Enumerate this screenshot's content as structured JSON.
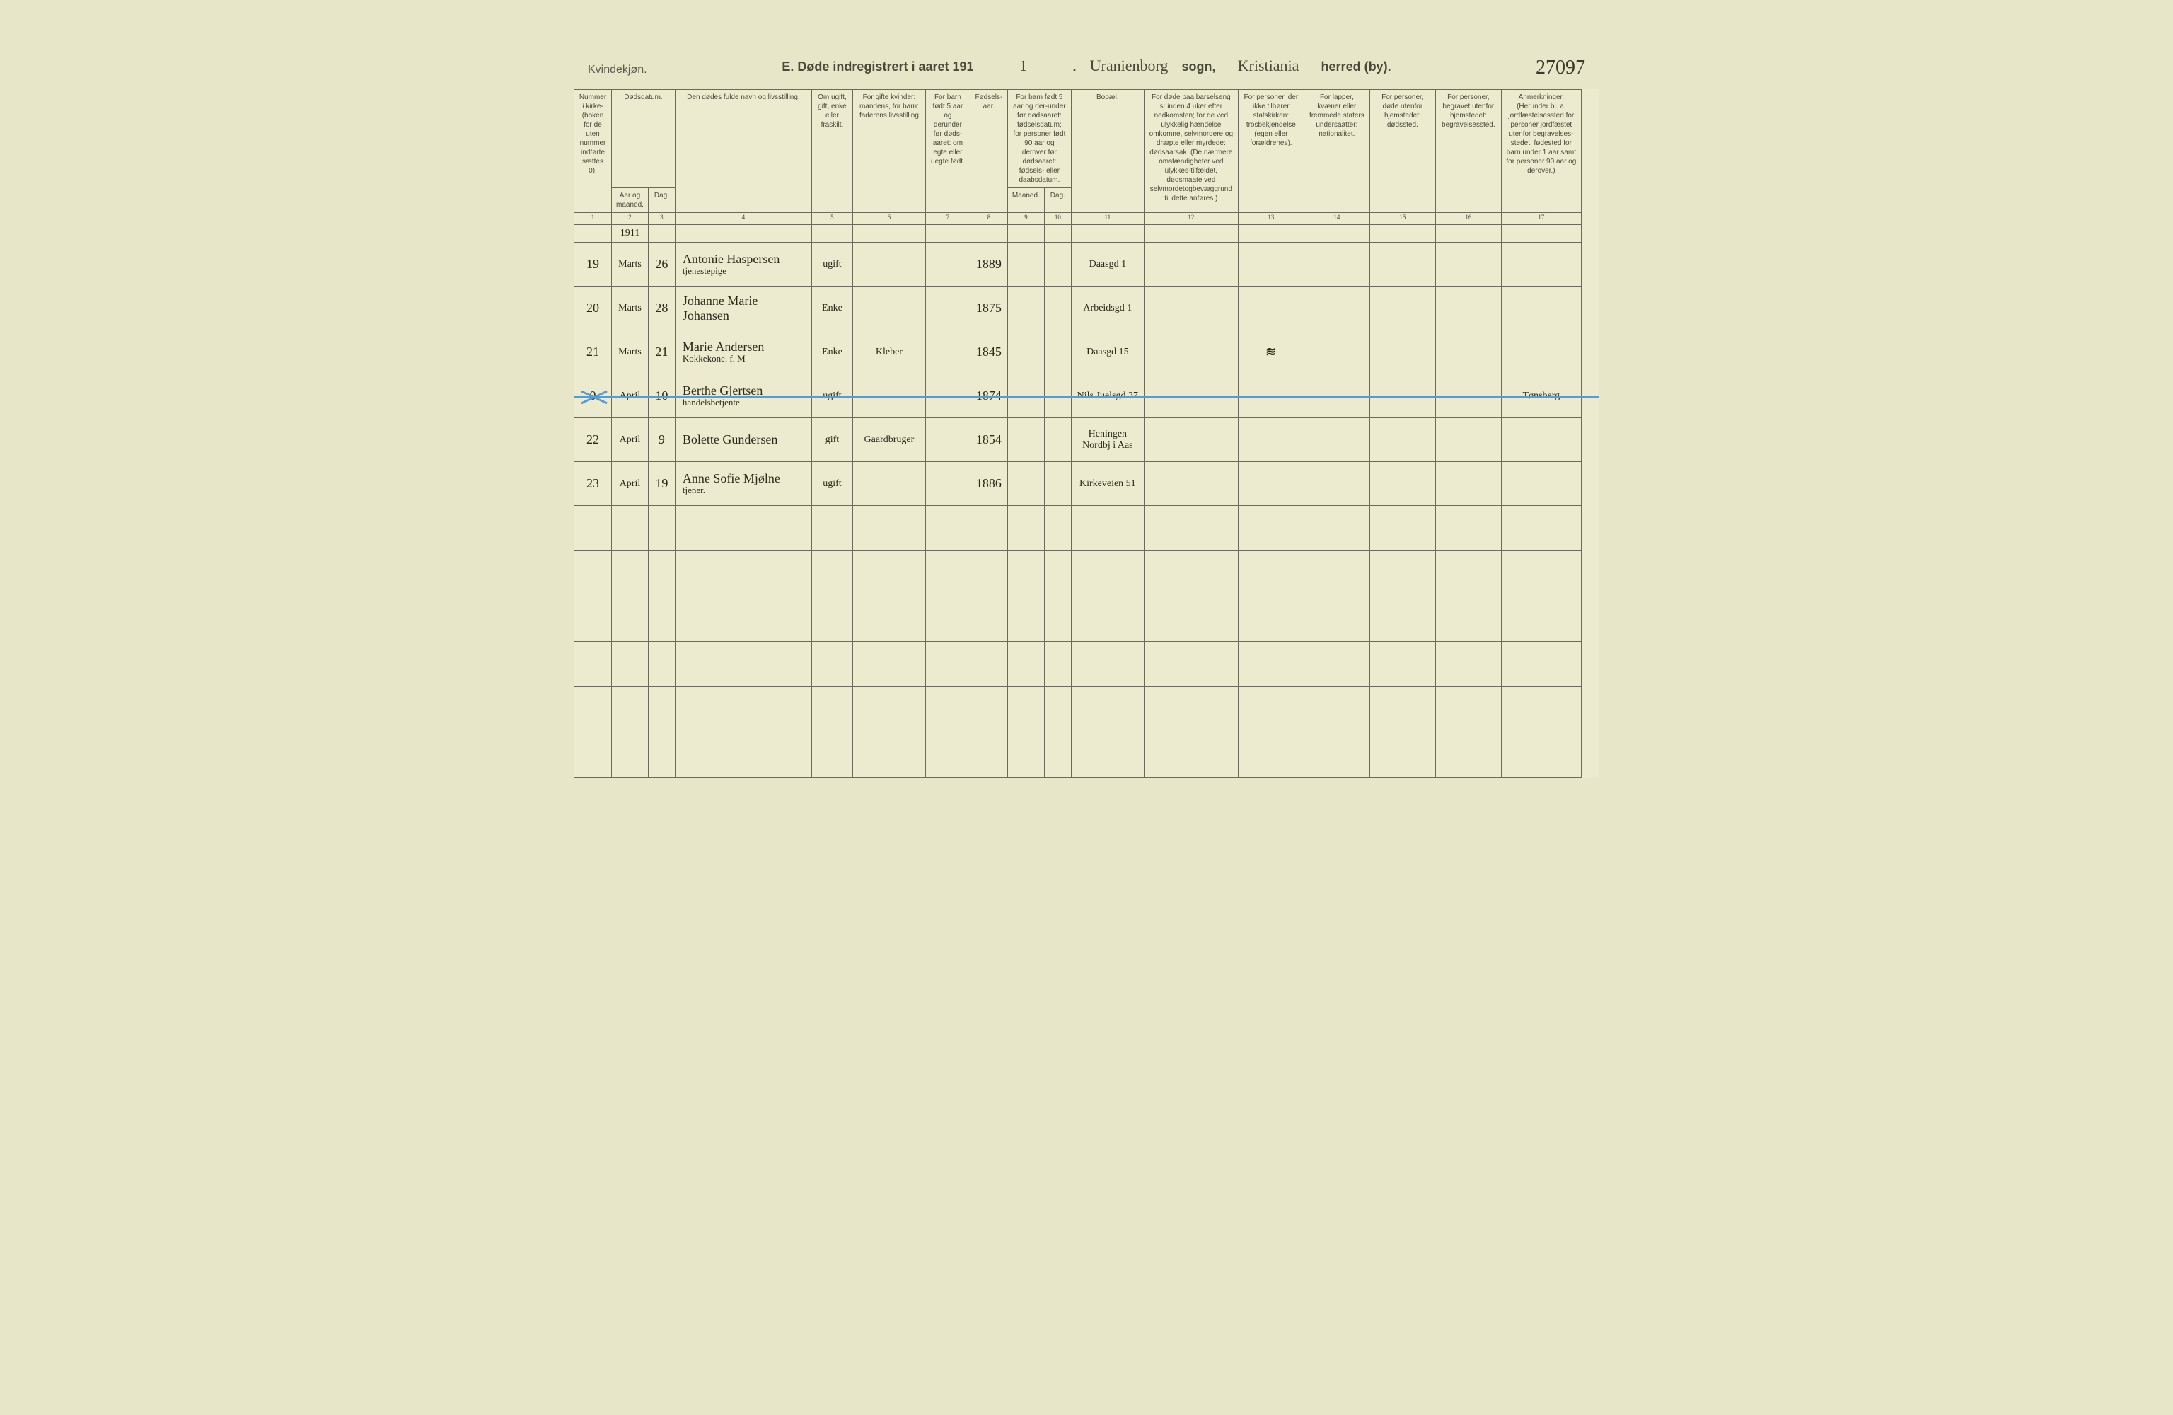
{
  "header": {
    "gender_label": "Kvindekjøn.",
    "page_number_handwritten": "27097",
    "title_prefix": "E.  Døde indregistrert i aaret 191",
    "year_suffix": "1",
    "period": ".",
    "parish_handwritten": "Uranienborg",
    "sogn_label": "sogn,",
    "district_handwritten": "Kristiania",
    "herred_label": "herred (by)."
  },
  "columns": {
    "c1": "Nummer i kirke-(boken for de uten nummer indførte sættes 0).",
    "c2_top": "Dødsdatum.",
    "c2a": "Aar og maaned.",
    "c2b": "Dag.",
    "c4": "Den dødes fulde navn og livsstilling.",
    "c5": "Om ugift, gift, enke eller fraskilt.",
    "c6": "For gifte kvinder: mandens, for barn: faderens livsstilling",
    "c7": "For barn født 5 aar og derunder før døds-aaret: om egte eller uegte født.",
    "c8": "Fødsels-aar.",
    "c9_top": "For barn født 5 aar og der-under før dødsaaret: fødselsdatum; for personer født 90 aar og derover før dødsaaret: fødsels- eller daabsdatum.",
    "c9a": "Maaned.",
    "c9b": "Dag.",
    "c11": "Bopæl.",
    "c12": "For døde paa barselseng s: inden 4 uker efter nedkomsten; for de ved ulykkelig hændelse omkomne, selvmordere og dræpte eller myrdede: dødsaarsak. (De nærmere omstændigheter ved ulykkes-tilfældet, dødsmaate ved selvmordetogbevæggrund til dette anføres.)",
    "c13": "For personer, der ikke tilhører statskirken: trosbekjendelse (egen eller forældrenes).",
    "c14": "For lapper, kvæner eller fremmede staters undersaatter: nationalitet.",
    "c15": "For personer, døde utenfor hjemstedet: dødssted.",
    "c16": "For personer, begravet utenfor hjemstedet: begravelsessted.",
    "c17": "Anmerkninger. (Herunder bl. a. jordfæstelsessted for personer jordfæstet utenfor begravelses-stedet, fødested for barn under 1 aar samt for personer 90 aar og derover.)"
  },
  "colnums": {
    "n1": "1",
    "n2": "2",
    "n3": "3",
    "n4": "4",
    "n5": "5",
    "n6": "6",
    "n7": "7",
    "n8": "8",
    "n9": "9",
    "n10": "10",
    "n11": "11",
    "n12": "12",
    "n13": "13",
    "n14": "14",
    "n15": "15",
    "n16": "16",
    "n17": "17"
  },
  "year_row": {
    "year": "1911"
  },
  "rows": [
    {
      "num": "19",
      "month": "Marts",
      "day": "26",
      "name": "Antonie Haspersen",
      "occupation": "tjenestepige",
      "status": "ugift",
      "spouse": "",
      "birth_year": "1889",
      "residence": "Daasgd 1"
    },
    {
      "num": "20",
      "month": "Marts",
      "day": "28",
      "name": "Johanne Marie Johansen",
      "occupation": "",
      "status": "Enke",
      "spouse": "",
      "birth_year": "1875",
      "residence": "Arbeidsgd 1"
    },
    {
      "num": "21",
      "month": "Marts",
      "day": "21",
      "name": "Marie Andersen",
      "occupation": "Kokkekone.       f. M",
      "status": "Enke",
      "spouse": "Kleber",
      "spouse_struck": true,
      "birth_year": "1845",
      "residence": "Daasgd 15",
      "c13_scribble": true
    },
    {
      "num": "0",
      "month": "April",
      "day": "10",
      "name": "Berthe Gjertsen",
      "occupation": "handelsbetjente",
      "status": "ugift",
      "spouse": "",
      "birth_year": "1874",
      "residence": "Nils Juelsgd 37",
      "blue_line": true,
      "c17": "Tønsberg"
    },
    {
      "num": "22",
      "month": "April",
      "day": "9",
      "name": "Bolette Gundersen",
      "occupation": "",
      "status": "gift",
      "spouse": "Gaardbruger",
      "birth_year": "1854",
      "residence": "Heningen Nordbj i Aas"
    },
    {
      "num": "23",
      "month": "April",
      "day": "19",
      "name": "Anne Sofie Mjølne",
      "occupation": "tjener.",
      "status": "ugift",
      "spouse": "",
      "birth_year": "1886",
      "residence": "Kirkeveien 51"
    }
  ]
}
